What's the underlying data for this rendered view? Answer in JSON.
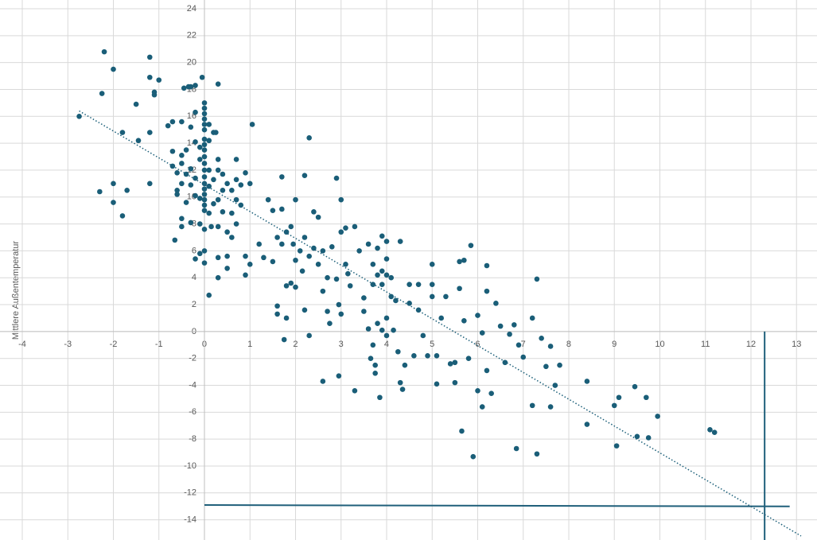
{
  "chart_data": {
    "type": "scatter",
    "y_label": "Mittlere Außentemperatur",
    "xlim": [
      -4,
      13.45
    ],
    "ylim": [
      -15.5,
      24
    ],
    "xticks": [
      -4,
      -3,
      -2,
      -1,
      0,
      1,
      2,
      3,
      4,
      5,
      6,
      7,
      8,
      9,
      10,
      11,
      12,
      13
    ],
    "yticks": [
      -14,
      -12,
      -10,
      -8,
      -6,
      -4,
      -2,
      0,
      2,
      4,
      6,
      8,
      10,
      12,
      14,
      16,
      18,
      20,
      22,
      24
    ],
    "grid": true,
    "series": [
      {
        "color": "#1a5e78",
        "x": [
          -2.75,
          -2.2,
          -2.25,
          -2.3,
          -2,
          -2,
          -2,
          -1.8,
          -1.8,
          -1.7,
          -1.5,
          -1.45,
          -1.2,
          -1.2,
          -1.2,
          -1.2,
          -1.1,
          -1.1,
          -1,
          -0.8,
          -0.7,
          -0.7,
          -0.7,
          -0.6,
          -0.6,
          -0.6,
          -0.65,
          -0.5,
          -0.5,
          -0.5,
          -0.5,
          -0.5,
          -0.5,
          -0.45,
          -0.4,
          -0.4,
          -0.4,
          -0.35,
          -0.3,
          -0.3,
          -0.3,
          -0.3,
          -0.3,
          -0.2,
          -0.2,
          -0.2,
          -0.2,
          -0.2,
          -0.2,
          -0.1,
          -0.1,
          -0.1,
          -0.1,
          -0.1,
          -0.05,
          0,
          0,
          0,
          0,
          0,
          0,
          0,
          0,
          0,
          0,
          0,
          0,
          0,
          0,
          0,
          0,
          0,
          0,
          0,
          0,
          0,
          0,
          0.1,
          0.1,
          0.1,
          0.1,
          0.1,
          0.1,
          0.15,
          0.2,
          0.2,
          0.2,
          0.25,
          0.3,
          0.3,
          0.3,
          0.3,
          0.3,
          0.3,
          0.3,
          0.4,
          0.4,
          0.4,
          0.5,
          0.5,
          0.5,
          0.5,
          0.6,
          0.6,
          0.6,
          0.7,
          0.7,
          0.7,
          0.7,
          0.8,
          0.8,
          0.9,
          0.9,
          0.9,
          1,
          1,
          1.05,
          1.2,
          1.3,
          1.4,
          1.5,
          1.5,
          1.6,
          1.6,
          1.6,
          1.7,
          1.7,
          1.7,
          1.75,
          1.8,
          1.8,
          1.8,
          1.9,
          1.9,
          1.95,
          2,
          2,
          2,
          2.1,
          2.15,
          2.2,
          2.2,
          2.2,
          2.3,
          2.3,
          2.3,
          2.4,
          2.4,
          2.5,
          2.5,
          2.6,
          2.6,
          2.6,
          2.7,
          2.7,
          2.75,
          2.8,
          2.9,
          2.9,
          2.95,
          2.95,
          3,
          3,
          3,
          3.1,
          3.1,
          3.15,
          3.2,
          3.3,
          3.3,
          3.4,
          3.5,
          3.5,
          3.6,
          3.6,
          3.65,
          3.7,
          3.7,
          3.7,
          3.75,
          3.75,
          3.8,
          3.8,
          3.8,
          3.85,
          3.9,
          3.9,
          3.9,
          3.9,
          4,
          4,
          4,
          4,
          4,
          4.1,
          4.1,
          4.15,
          4.2,
          4.25,
          4.3,
          4.3,
          4.35,
          4.4,
          4.5,
          4.5,
          4.6,
          4.7,
          4.7,
          4.8,
          4.9,
          5,
          5,
          5,
          5.1,
          5.1,
          5.2,
          5.3,
          5.4,
          5.5,
          5.5,
          5.6,
          5.6,
          5.65,
          5.7,
          5.7,
          5.8,
          5.85,
          5.9,
          6,
          6,
          6.1,
          6.1,
          6.2,
          6.2,
          6.2,
          6.3,
          6.4,
          6.5,
          6.6,
          6.7,
          6.8,
          6.85,
          6.9,
          7,
          7.2,
          7.2,
          7.3,
          7.4,
          7.5,
          7.6,
          7.6,
          7.7,
          7.8,
          7.3,
          8.4,
          8.4,
          9,
          9.05,
          9.1,
          9.45,
          9.5,
          9.7,
          9.75,
          9.95,
          11.1,
          11.2
        ],
        "y": [
          16,
          20.8,
          17.7,
          10.4,
          19.5,
          11,
          9.6,
          14.8,
          8.6,
          10.5,
          16.9,
          14.2,
          20.4,
          18.9,
          14.8,
          11,
          17.6,
          17.8,
          18.7,
          15.3,
          15.6,
          13.4,
          12.3,
          11.8,
          10.5,
          10.2,
          6.8,
          15.6,
          13.1,
          12.5,
          11,
          8.4,
          7.8,
          18.1,
          13.5,
          11.7,
          9.6,
          18.2,
          18.2,
          15.2,
          12.1,
          10.9,
          8.1,
          18.3,
          16.3,
          14.1,
          11.4,
          10.1,
          5.4,
          13.7,
          12.8,
          9.9,
          8,
          5.8,
          18.9,
          17,
          16.6,
          16.2,
          15.8,
          15.4,
          15,
          14.3,
          13.9,
          13.5,
          13,
          12.5,
          12,
          11.5,
          11,
          10.6,
          10.2,
          9.8,
          9.4,
          9,
          7.6,
          6,
          5.1,
          15.4,
          14.2,
          12,
          10.8,
          8.8,
          2.7,
          7.8,
          14.8,
          11.3,
          9.5,
          14.8,
          18.4,
          12.8,
          12,
          9.8,
          7.8,
          5.5,
          4,
          11.7,
          10.5,
          8.9,
          11,
          7.4,
          5.6,
          4.7,
          10.5,
          8.8,
          7,
          12.8,
          11.3,
          9.8,
          8,
          10.9,
          9.4,
          11.8,
          5.6,
          4.2,
          11,
          5,
          15.4,
          6.5,
          5.5,
          9.8,
          5.2,
          9,
          7,
          1.9,
          1.3,
          11.5,
          9.1,
          6.5,
          -0.6,
          3.4,
          1,
          7.4,
          3.6,
          7.8,
          6.5,
          9.8,
          5.3,
          3.3,
          6,
          4.5,
          11.6,
          7,
          1.6,
          -0.3,
          14.4,
          5.6,
          8.9,
          6.2,
          8.5,
          5,
          6,
          3,
          -3.7,
          4,
          1.5,
          0.6,
          6.3,
          11.4,
          3.9,
          2,
          -3.3,
          9.8,
          7.4,
          1.3,
          7.7,
          5,
          4.3,
          3.4,
          7.8,
          -4.4,
          6,
          2.5,
          1.5,
          6.5,
          0.2,
          -2,
          5,
          3.5,
          -1,
          -2.5,
          -3.1,
          6.2,
          4.2,
          0.6,
          -4.9,
          7.1,
          4.5,
          3.5,
          0.1,
          6.7,
          5.4,
          4.2,
          1,
          -0.3,
          4,
          2.6,
          0.1,
          2.3,
          -1.5,
          6.7,
          -3.8,
          -4.3,
          -2.5,
          3.5,
          2.1,
          -1.8,
          3.5,
          1.6,
          -0.3,
          -1.8,
          5,
          3.5,
          2.6,
          -3.9,
          -1.8,
          1,
          2.6,
          -2.4,
          -3.8,
          -2.3,
          5.2,
          3.2,
          -7.4,
          5.3,
          0.8,
          -2,
          6.4,
          -9.3,
          1.2,
          -4.4,
          -0.1,
          -5.6,
          4.9,
          3,
          -2.9,
          -4.6,
          2.1,
          0.4,
          -2.3,
          -0.2,
          0.5,
          -8.7,
          -1,
          -1.9,
          1,
          -5.5,
          3.9,
          -0.5,
          -2.6,
          -1.1,
          -5.6,
          -4,
          -2.5,
          -9.1,
          -3.7,
          -6.9,
          -5.5,
          -8.5,
          -4.9,
          -4.1,
          -7.8,
          -4.9,
          -7.9,
          -6.3,
          -7.3,
          -7.5
        ]
      }
    ],
    "trendline": {
      "color": "#1a5e78",
      "x": [
        -2.75,
        13.1
      ],
      "y": [
        16.4,
        -15.2
      ]
    },
    "reference_lines": [
      {
        "color": "#1f5f7a",
        "x": [
          12.3,
          12.3
        ],
        "y": [
          0,
          -15.5
        ]
      },
      {
        "color": "#1f5f7a",
        "x": [
          0,
          12.85
        ],
        "y": [
          -12.9,
          -13
        ]
      }
    ]
  }
}
